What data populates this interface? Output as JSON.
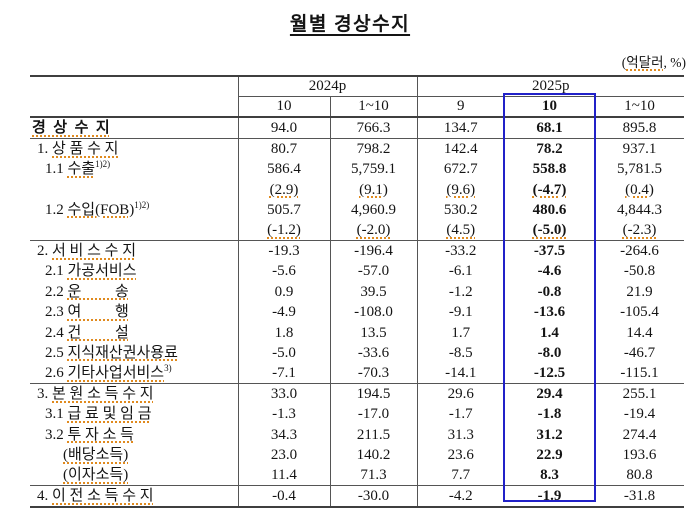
{
  "title": "월별 경상수지",
  "unit_note": {
    "open": "(",
    "text": "억달러",
    "close": ", %)"
  },
  "accent_color": "#2121c8",
  "squiggle_color": "#e08a1e",
  "header": {
    "groups": [
      {
        "label": "2024p"
      },
      {
        "label": "2025p"
      }
    ],
    "cols": [
      "10",
      "1~10",
      "9",
      "10",
      "1~10"
    ],
    "highlighted_col": "10"
  },
  "rows": [
    {
      "prefix": "",
      "text": "경  상  수  지",
      "sup": "",
      "indent": 0,
      "bold_label": true,
      "section": false,
      "paren": false,
      "values": [
        "94.0",
        "766.3",
        "134.7",
        "68.1",
        "895.8"
      ]
    },
    {
      "prefix": "1. ",
      "text": "상 품 수 지",
      "sup": "",
      "indent": 1,
      "bold_label": false,
      "section": true,
      "paren": false,
      "values": [
        "80.7",
        "798.2",
        "142.4",
        "78.2",
        "937.1"
      ]
    },
    {
      "prefix": "1.1 ",
      "text": "수출",
      "sup": "1)2)",
      "indent": 2,
      "bold_label": false,
      "section": false,
      "paren": false,
      "values": [
        "586.4",
        "5,759.1",
        "672.7",
        "558.8",
        "5,781.5"
      ]
    },
    {
      "prefix": "",
      "text": "",
      "sup": "",
      "indent": 2,
      "bold_label": false,
      "section": false,
      "paren": true,
      "values": [
        "(2.9)",
        "(9.1)",
        "(9.6)",
        "(-4.7)",
        "(0.4)"
      ]
    },
    {
      "prefix": "1.2 ",
      "text": "수입(FOB)",
      "sup": "1)2)",
      "indent": 2,
      "bold_label": false,
      "section": false,
      "paren": false,
      "values": [
        "505.7",
        "4,960.9",
        "530.2",
        "480.6",
        "4,844.3"
      ]
    },
    {
      "prefix": "",
      "text": "",
      "sup": "",
      "indent": 2,
      "bold_label": false,
      "section": false,
      "paren": true,
      "values": [
        "(-1.2)",
        "(-2.0)",
        "(4.5)",
        "(-5.0)",
        "(-2.3)"
      ]
    },
    {
      "prefix": "2. ",
      "text": "서 비 스 수 지",
      "sup": "",
      "indent": 1,
      "bold_label": false,
      "section": true,
      "paren": false,
      "values": [
        "-19.3",
        "-196.4",
        "-33.2",
        "-37.5",
        "-264.6"
      ]
    },
    {
      "prefix": "2.1 ",
      "text": "가공서비스",
      "sup": "",
      "indent": 2,
      "bold_label": false,
      "section": false,
      "paren": false,
      "values": [
        "-5.6",
        "-57.0",
        "-6.1",
        "-4.6",
        "-50.8"
      ]
    },
    {
      "prefix": "2.2 ",
      "text": "운         송",
      "sup": "",
      "indent": 2,
      "bold_label": false,
      "section": false,
      "paren": false,
      "values": [
        "0.9",
        "39.5",
        "-1.2",
        "-0.8",
        "21.9"
      ]
    },
    {
      "prefix": "2.3 ",
      "text": "여         행",
      "sup": "",
      "indent": 2,
      "bold_label": false,
      "section": false,
      "paren": false,
      "values": [
        "-4.9",
        "-108.0",
        "-9.1",
        "-13.6",
        "-105.4"
      ]
    },
    {
      "prefix": "2.4 ",
      "text": "건         설",
      "sup": "",
      "indent": 2,
      "bold_label": false,
      "section": false,
      "paren": false,
      "values": [
        "1.8",
        "13.5",
        "1.7",
        "1.4",
        "14.4"
      ]
    },
    {
      "prefix": "2.5 ",
      "text": "지식재산권사용료",
      "sup": "",
      "indent": 2,
      "bold_label": false,
      "section": false,
      "paren": false,
      "values": [
        "-5.0",
        "-33.6",
        "-8.5",
        "-8.0",
        "-46.7"
      ]
    },
    {
      "prefix": "2.6 ",
      "text": "기타사업서비스",
      "sup": "3)",
      "indent": 2,
      "bold_label": false,
      "section": false,
      "paren": false,
      "values": [
        "-7.1",
        "-70.3",
        "-14.1",
        "-12.5",
        "-115.1"
      ]
    },
    {
      "prefix": "3. ",
      "text": "본 원 소 득 수 지",
      "sup": "",
      "indent": 1,
      "bold_label": false,
      "section": true,
      "paren": false,
      "values": [
        "33.0",
        "194.5",
        "29.6",
        "29.4",
        "255.1"
      ]
    },
    {
      "prefix": "3.1 ",
      "text": "급 료 및 임 금",
      "sup": "",
      "indent": 2,
      "bold_label": false,
      "section": false,
      "paren": false,
      "values": [
        "-1.3",
        "-17.0",
        "-1.7",
        "-1.8",
        "-19.4"
      ]
    },
    {
      "prefix": "3.2 ",
      "text": "투 자 소 득",
      "sup": "",
      "indent": 2,
      "bold_label": false,
      "section": false,
      "paren": false,
      "values": [
        "34.3",
        "211.5",
        "31.3",
        "31.2",
        "274.4"
      ]
    },
    {
      "prefix": "",
      "text": "(배당소득)",
      "sup": "",
      "indent": 3,
      "bold_label": false,
      "section": false,
      "paren": false,
      "values": [
        "23.0",
        "140.2",
        "23.6",
        "22.9",
        "193.6"
      ]
    },
    {
      "prefix": "",
      "text": "(이자소득)",
      "sup": "",
      "indent": 3,
      "bold_label": false,
      "section": false,
      "paren": false,
      "values": [
        "11.4",
        "71.3",
        "7.7",
        "8.3",
        "80.8"
      ]
    },
    {
      "prefix": "4. ",
      "text": "이 전 소 득 수 지",
      "sup": "",
      "indent": 1,
      "bold_label": false,
      "section": true,
      "paren": false,
      "values": [
        "-0.4",
        "-30.0",
        "-4.2",
        "-1.9",
        "-31.8"
      ]
    }
  ]
}
